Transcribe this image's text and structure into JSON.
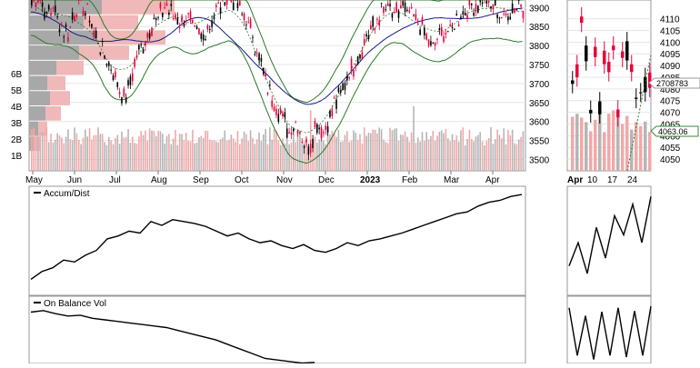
{
  "chart_data": [
    {
      "type": "candlestick",
      "title": "",
      "xlabel": "",
      "ylabel": "",
      "price_axis_ticks": [
        3500,
        3550,
        3600,
        3650,
        3700,
        3750,
        3800,
        3850,
        3900
      ],
      "volume_axis_ticks": [
        "1B",
        "2B",
        "3B",
        "4B",
        "5B",
        "6B"
      ],
      "x_tick_labels": [
        "May",
        "Jun",
        "Jul",
        "Aug",
        "Sep",
        "Oct",
        "Nov",
        "Dec",
        "2023",
        "Feb",
        "Mar",
        "Apr"
      ],
      "ylim": [
        3470,
        3920
      ],
      "overlays": [
        "bollinger-bands",
        "moving-average",
        "volume-by-price"
      ],
      "grid": true,
      "series": [
        {
          "values": [
            3920,
            3940,
            3880,
            3900,
            3860,
            3830,
            3890,
            3920,
            3870,
            3820,
            3790,
            3750,
            3700,
            3660,
            3720,
            3780,
            3820,
            3860,
            3890,
            3900,
            3880,
            3860,
            3870,
            3840,
            3820,
            3860,
            3890,
            3920,
            3930,
            3900,
            3880,
            3830,
            3760,
            3700,
            3650,
            3620,
            3580,
            3600,
            3560,
            3530,
            3600,
            3580,
            3620,
            3660,
            3700,
            3740,
            3780,
            3820,
            3850,
            3880,
            3900,
            3880,
            3900,
            3880,
            3860,
            3840,
            3800,
            3820,
            3830,
            3850,
            3870,
            3890,
            3900,
            3920,
            3910,
            3900,
            3880,
            3890,
            3910,
            3900
          ]
        }
      ]
    },
    {
      "type": "candlestick",
      "title": "",
      "price_axis_ticks": [
        4050,
        4055,
        4060,
        4065,
        4070,
        4075,
        4080,
        4085,
        4090,
        4095,
        4100,
        4105,
        4110
      ],
      "x_tick_labels": [
        "Apr",
        "10",
        "17",
        "24"
      ],
      "last_price_label": "4063.06",
      "last_volume_label": "2708783",
      "ylim": [
        4045,
        4118
      ]
    },
    {
      "type": "line",
      "title": "Accum/Dist",
      "series": [
        {
          "name": "Accum/Dist",
          "values": [
            10,
            18,
            22,
            30,
            28,
            35,
            40,
            52,
            55,
            60,
            58,
            70,
            66,
            72,
            70,
            68,
            65,
            60,
            55,
            58,
            52,
            48,
            50,
            45,
            42,
            46,
            40,
            38,
            42,
            48,
            45,
            50,
            52,
            55,
            58,
            62,
            66,
            70,
            74,
            78,
            80,
            86,
            90,
            92,
            96,
            98
          ]
        }
      ],
      "mini": [
        30,
        60,
        20,
        80,
        40,
        95,
        70,
        110,
        60,
        120
      ]
    },
    {
      "type": "line",
      "title": "On Balance Vol",
      "series": [
        {
          "name": "On Balance Vol",
          "values": [
            90,
            92,
            88,
            85,
            86,
            82,
            80,
            78,
            76,
            74,
            72,
            70,
            66,
            62,
            58,
            54,
            48,
            42,
            36,
            30,
            28,
            26,
            24,
            25
          ]
        }
      ],
      "mini": [
        70,
        10,
        60,
        5,
        65,
        10,
        70,
        8,
        66,
        10,
        72
      ]
    }
  ]
}
